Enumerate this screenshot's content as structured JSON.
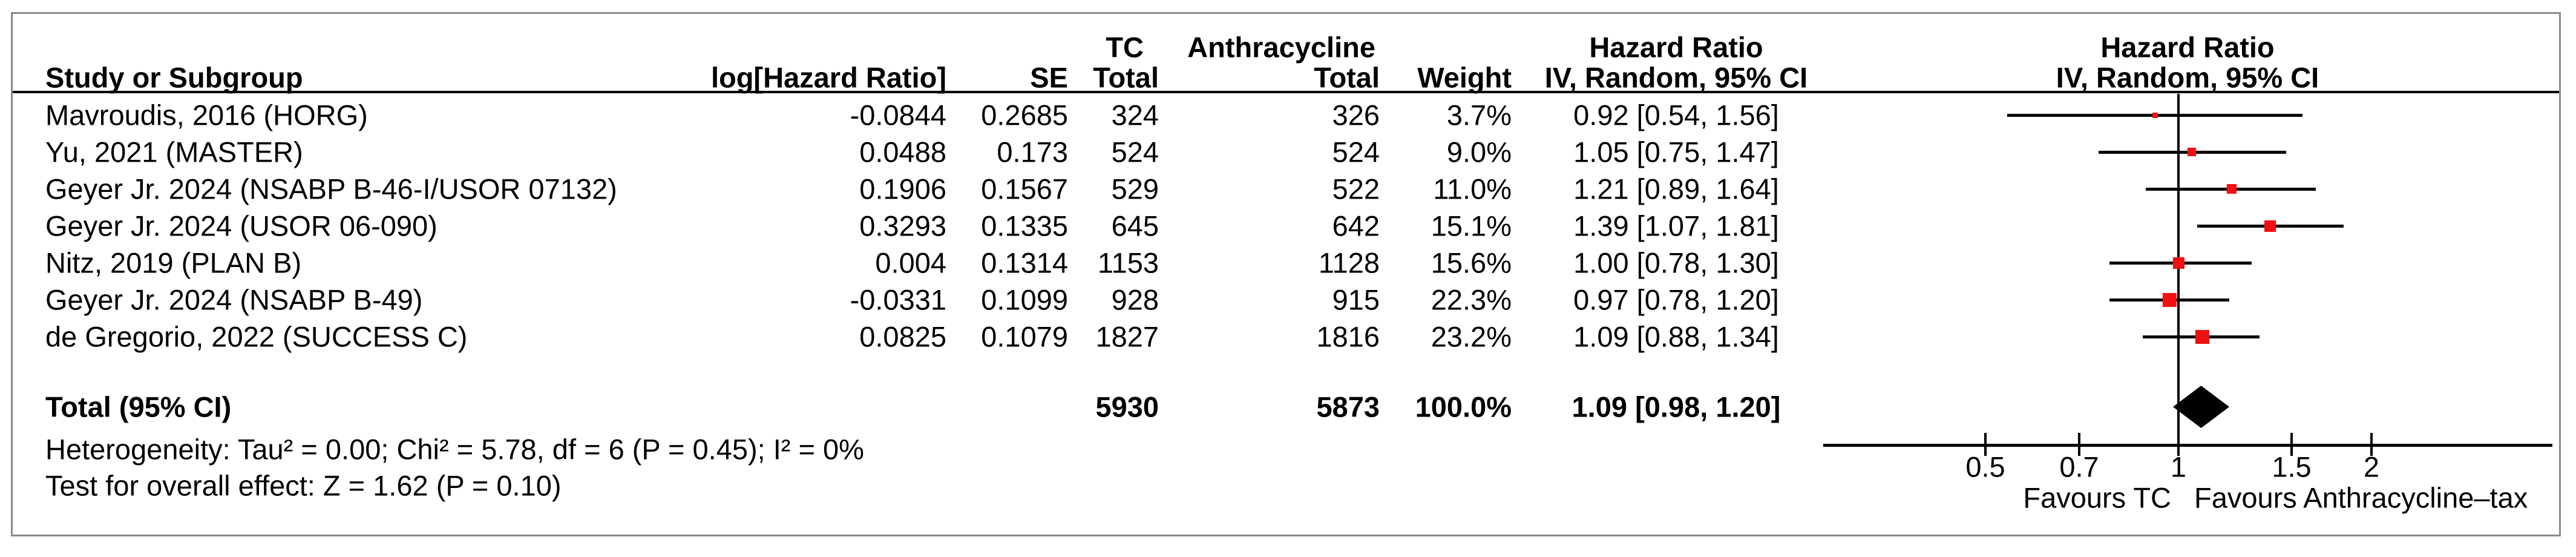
{
  "header": {
    "group1": {
      "tc": "TC",
      "anthracycline": "Anthracycline",
      "hazard_ratio_text": "Hazard Ratio",
      "hazard_ratio_plot": "Hazard Ratio"
    },
    "group2": {
      "study": "Study or Subgroup",
      "log_hr": "log[Hazard Ratio]",
      "se": "SE",
      "tc_total": "Total",
      "anthra_total": "Total",
      "weight": "Weight",
      "ci_text": "IV, Random, 95% CI",
      "ci_plot": "IV, Random, 95% CI"
    }
  },
  "chart_data": {
    "type": "forest",
    "effect_measure": "Hazard Ratio",
    "model": "IV, Random, 95% CI",
    "x_scale": "log",
    "x_ticks": [
      {
        "label": "0.5",
        "value": 0.5
      },
      {
        "label": "0.7",
        "value": 0.7
      },
      {
        "label": "1",
        "value": 1
      },
      {
        "label": "1.5",
        "value": 1.5
      },
      {
        "label": "2",
        "value": 2
      }
    ],
    "favours_left": "Favours TC",
    "favours_right": "Favours Anthracycline–tax",
    "marker_color": "#ee1111",
    "diamond_color": "#000000",
    "studies": [
      {
        "name": "Mavroudis, 2016 (HORG)",
        "log_hr": "-0.0844",
        "se": "0.2685",
        "tc_total": "324",
        "anthra_total": "326",
        "weight": "3.7%",
        "ci_text": "0.92 [0.54, 1.56]",
        "hr": 0.92,
        "lo": 0.54,
        "hi": 1.56,
        "weight_pct": 3.7
      },
      {
        "name": "Yu, 2021 (MASTER)",
        "log_hr": "0.0488",
        "se": "0.173",
        "tc_total": "524",
        "anthra_total": "524",
        "weight": "9.0%",
        "ci_text": "1.05 [0.75, 1.47]",
        "hr": 1.05,
        "lo": 0.75,
        "hi": 1.47,
        "weight_pct": 9.0
      },
      {
        "name": "Geyer Jr. 2024 (NSABP B-46-I/USOR 07132)",
        "log_hr": "0.1906",
        "se": "0.1567",
        "tc_total": "529",
        "anthra_total": "522",
        "weight": "11.0%",
        "ci_text": "1.21 [0.89, 1.64]",
        "hr": 1.21,
        "lo": 0.89,
        "hi": 1.64,
        "weight_pct": 11.0
      },
      {
        "name": "Geyer Jr. 2024 (USOR 06-090)",
        "log_hr": "0.3293",
        "se": "0.1335",
        "tc_total": "645",
        "anthra_total": "642",
        "weight": "15.1%",
        "ci_text": "1.39 [1.07, 1.81]",
        "hr": 1.39,
        "lo": 1.07,
        "hi": 1.81,
        "weight_pct": 15.1
      },
      {
        "name": "Nitz, 2019 (PLAN B)",
        "log_hr": "0.004",
        "se": "0.1314",
        "tc_total": "1153",
        "anthra_total": "1128",
        "weight": "15.6%",
        "ci_text": "1.00 [0.78, 1.30]",
        "hr": 1.0,
        "lo": 0.78,
        "hi": 1.3,
        "weight_pct": 15.6
      },
      {
        "name": "Geyer Jr. 2024 (NSABP B-49)",
        "log_hr": "-0.0331",
        "se": "0.1099",
        "tc_total": "928",
        "anthra_total": "915",
        "weight": "22.3%",
        "ci_text": "0.97 [0.78, 1.20]",
        "hr": 0.97,
        "lo": 0.78,
        "hi": 1.2,
        "weight_pct": 22.3
      },
      {
        "name": "de Gregorio, 2022 (SUCCESS C)",
        "log_hr": "0.0825",
        "se": "0.1079",
        "tc_total": "1827",
        "anthra_total": "1816",
        "weight": "23.2%",
        "ci_text": "1.09 [0.88, 1.34]",
        "hr": 1.09,
        "lo": 0.88,
        "hi": 1.34,
        "weight_pct": 23.2
      }
    ],
    "total": {
      "label": "Total (95% CI)",
      "tc_total": "5930",
      "anthra_total": "5873",
      "weight": "100.0%",
      "ci_text": "1.09 [0.98, 1.20]",
      "hr": 1.09,
      "lo": 0.98,
      "hi": 1.2
    },
    "heterogeneity": "Heterogeneity: Tau² = 0.00; Chi² = 5.78, df = 6 (P = 0.45); I² = 0%",
    "overall_effect": "Test for overall effect: Z = 1.62 (P = 0.10)"
  }
}
